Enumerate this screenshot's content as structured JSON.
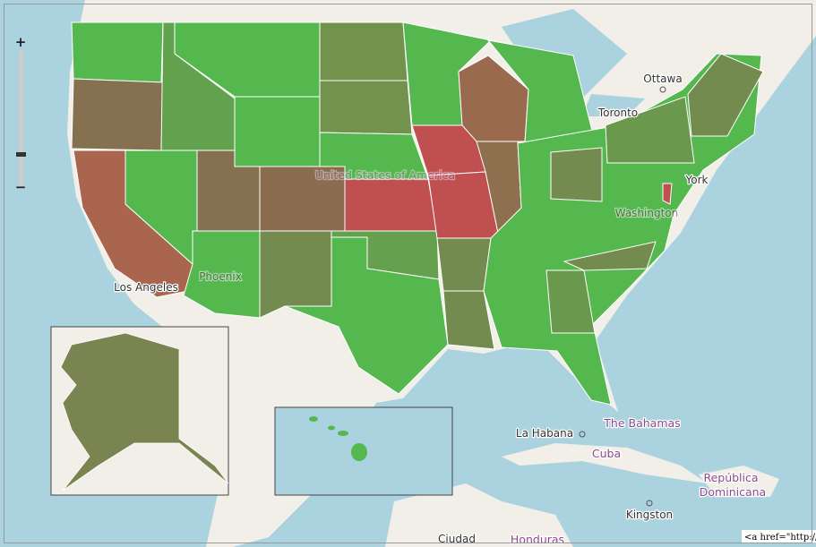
{
  "zoom_controls": {
    "zoom_in": "+",
    "zoom_out": "−"
  },
  "labels": {
    "ottawa": "Ottawa",
    "toronto": "Toronto",
    "new_york": "York",
    "washington": "Washington",
    "los_angeles": "Los Angeles",
    "phoenix": "Phoenix",
    "usa": "United States of America",
    "bahamas": "The Bahamas",
    "la_habana": "La Habana",
    "cuba": "Cuba",
    "republica": "República",
    "dominicana": "Dominicana",
    "kingston": "Kingston",
    "ciudad": "Ciudad",
    "honduras": "Honduras"
  },
  "attribution": "<a href=\"http://("
}
